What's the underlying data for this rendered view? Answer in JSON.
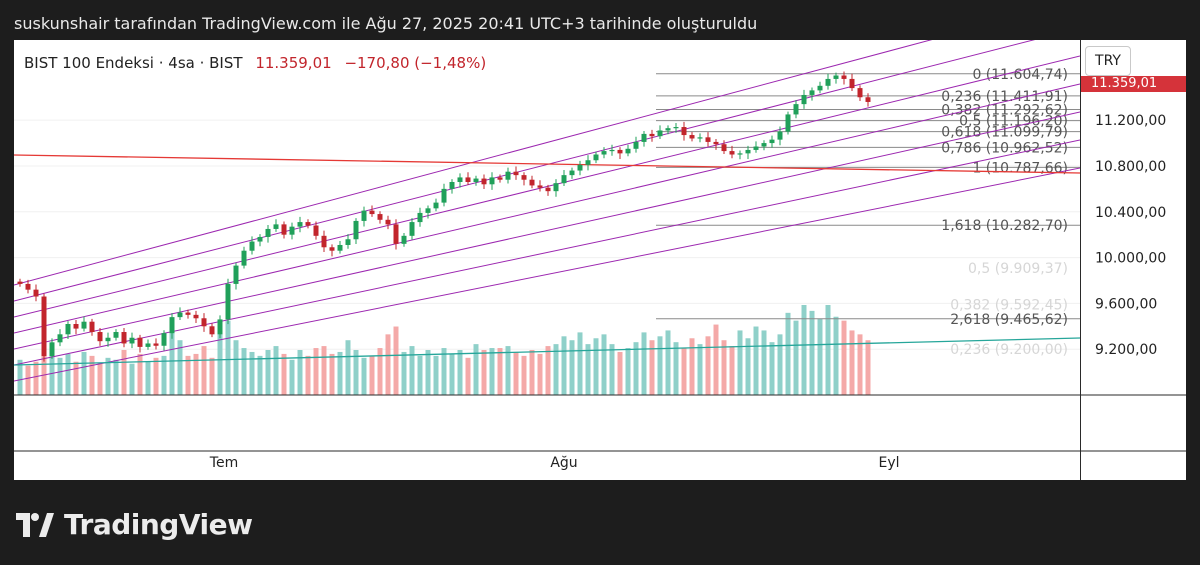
{
  "caption": "suskunshair tarafından TradingView.com ile Ağu 27, 2025 20:41 UTC+3 tarihinde oluşturuldu",
  "symbol": {
    "name": "BIST 100 Endeksi · 4sa · BIST",
    "last": "11.359,01",
    "change": "−170,80 (−1,48%)"
  },
  "currency": "TRY",
  "last_price_tag": "11.359,01",
  "brand": "TradingView",
  "colors": {
    "up": "#20a05a",
    "down": "#c2252c",
    "channel": "#9c27b0",
    "trend_red": "#e53935",
    "trend_teal": "#26a69a",
    "fib": "#8a8a8a",
    "vol_up": "#8fd0c9",
    "vol_down": "#f4a9a8"
  },
  "chart_data": {
    "type": "candlestick",
    "x_labels": [
      {
        "label": "Tem",
        "date": "2025-07-01"
      },
      {
        "label": "Ağu",
        "date": "2025-08-01"
      },
      {
        "label": "Eyl",
        "date": "2025-09-01"
      }
    ],
    "y_ticks": [
      "11.200,00",
      "10.800,00",
      "10.400,00",
      "10.000,00",
      "9.600,00",
      "9.200,00"
    ],
    "y_tick_values": [
      11200,
      10800,
      10400,
      10000,
      9600,
      9200
    ],
    "ylim": [
      8800,
      11900
    ],
    "fib_levels": [
      {
        "label": "0 (11.604,74)",
        "value": 11604.74
      },
      {
        "label": "0,236 (11.411,91)",
        "value": 11411.91
      },
      {
        "label": "0,382 (11.292,62)",
        "value": 11292.62
      },
      {
        "label": "0,5 (11.196,20)",
        "value": 11196.2
      },
      {
        "label": "0,618 (11.099,79)",
        "value": 11099.79
      },
      {
        "label": "0,786 (10.962,52)",
        "value": 10962.52
      },
      {
        "label": "1 (10.787,66)",
        "value": 10787.66
      },
      {
        "label": "1,618 (10.282,70)",
        "value": 10282.7
      },
      {
        "label": "2,618 (9.465,62)",
        "value": 9465.62
      }
    ],
    "faint_levels": [
      {
        "label": "0,5 (9.909,37)",
        "value": 9909.37
      },
      {
        "label": "0,382 (9.592,45)",
        "value": 9592.45
      },
      {
        "label": "0,236 (9.200,00)",
        "value": 9200.0
      }
    ],
    "closes": [
      9770,
      9720,
      9660,
      9140,
      9260,
      9330,
      9420,
      9380,
      9440,
      9350,
      9270,
      9300,
      9350,
      9250,
      9300,
      9220,
      9250,
      9230,
      9340,
      9480,
      9520,
      9500,
      9470,
      9400,
      9330,
      9460,
      9770,
      9930,
      10060,
      10140,
      10180,
      10250,
      10290,
      10200,
      10270,
      10310,
      10280,
      10190,
      10090,
      10060,
      10110,
      10160,
      10320,
      10410,
      10380,
      10330,
      10290,
      10120,
      10190,
      10310,
      10390,
      10430,
      10480,
      10600,
      10660,
      10700,
      10660,
      10690,
      10640,
      10700,
      10680,
      10750,
      10720,
      10680,
      10630,
      10610,
      10580,
      10650,
      10720,
      10760,
      10810,
      10850,
      10900,
      10930,
      10940,
      10910,
      10950,
      11010,
      11080,
      11060,
      11110,
      11130,
      11140,
      11070,
      11040,
      11050,
      11010,
      10990,
      10930,
      10900,
      10910,
      10940,
      10970,
      11000,
      11030,
      11100,
      11250,
      11340,
      11420,
      11460,
      11500,
      11560,
      11590,
      11560,
      11480,
      11400,
      11359
    ],
    "volumes": [
      180,
      150,
      170,
      260,
      240,
      190,
      210,
      170,
      220,
      200,
      160,
      190,
      180,
      230,
      160,
      210,
      170,
      190,
      200,
      340,
      280,
      200,
      210,
      250,
      190,
      360,
      380,
      280,
      240,
      220,
      200,
      230,
      250,
      210,
      180,
      230,
      200,
      240,
      250,
      210,
      220,
      280,
      230,
      190,
      200,
      240,
      310,
      350,
      220,
      250,
      200,
      230,
      200,
      240,
      210,
      230,
      190,
      260,
      230,
      240,
      240,
      250,
      220,
      200,
      230,
      210,
      250,
      260,
      300,
      280,
      320,
      260,
      290,
      310,
      260,
      220,
      240,
      270,
      320,
      280,
      300,
      330,
      270,
      240,
      290,
      260,
      300,
      360,
      280,
      250,
      330,
      290,
      350,
      330,
      270,
      310,
      420,
      380,
      460,
      430,
      390,
      460,
      400,
      380,
      330,
      310,
      280
    ]
  }
}
